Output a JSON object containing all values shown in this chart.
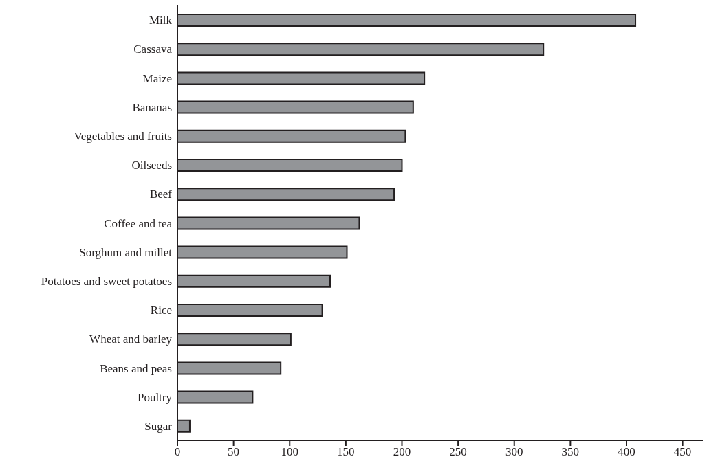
{
  "chart_data": {
    "type": "bar",
    "orientation": "horizontal",
    "categories": [
      "Milk",
      "Cassava",
      "Maize",
      "Bananas",
      "Vegetables and fruits",
      "Oilseeds",
      "Beef",
      "Coffee and tea",
      "Sorghum and millet",
      "Potatoes and sweet potatoes",
      "Rice",
      "Wheat and barley",
      "Beans and peas",
      "Poultry",
      "Sugar"
    ],
    "values": [
      408,
      326,
      220,
      210,
      203,
      200,
      193,
      162,
      151,
      136,
      129,
      101,
      92,
      67,
      11
    ],
    "color": "#939598",
    "xlim": [
      0,
      468
    ],
    "xticks": [
      0,
      50,
      100,
      150,
      200,
      250,
      300,
      350,
      400,
      450
    ],
    "grid": false,
    "legend": false
  }
}
